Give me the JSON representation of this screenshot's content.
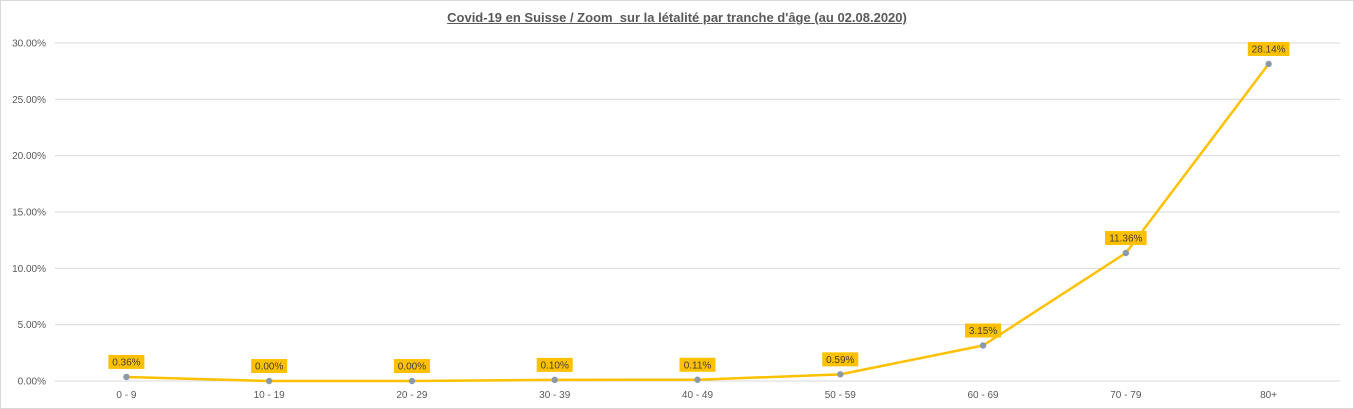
{
  "chart_data": {
    "type": "line",
    "title": "Covid-19 en Suisse / Zoom  sur la létalité par tranche d'âge (au 02.08.2020)",
    "xlabel": "",
    "ylabel": "",
    "categories": [
      "0 - 9",
      "10 - 19",
      "20 - 29",
      "30 - 39",
      "40 - 49",
      "50 - 59",
      "60 - 69",
      "70 - 79",
      "80+"
    ],
    "series": [
      {
        "values": [
          0.36,
          0.0,
          0.0,
          0.1,
          0.11,
          0.59,
          3.15,
          11.36,
          28.14
        ],
        "data_labels": [
          "0.36%",
          "0.00%",
          "0.00%",
          "0.10%",
          "0.11%",
          "0.59%",
          "3.15%",
          "11.36%",
          "28.14%"
        ],
        "line_color": "#ffc000",
        "marker_color": "#8c9aa8",
        "label_bg_color": "#ffc000"
      }
    ],
    "yticks": [
      0,
      5,
      10,
      15,
      20,
      25,
      30
    ],
    "ytick_labels": [
      "0.00%",
      "5.00%",
      "10.00%",
      "15.00%",
      "20.00%",
      "25.00%",
      "30.00%"
    ],
    "ylim": [
      0,
      30
    ],
    "grid": true,
    "legend": "none"
  }
}
